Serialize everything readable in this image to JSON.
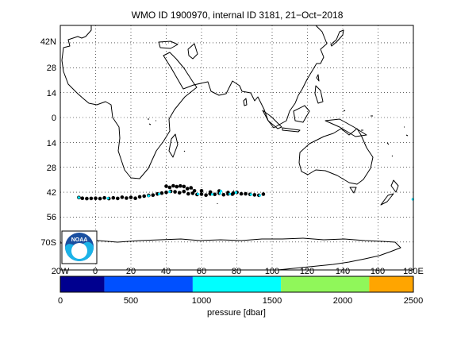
{
  "title": "WMO ID 1900970, internal ID 3181, 21−Oct−2018",
  "map": {
    "lat_ticks": [
      "42N",
      "28",
      "14",
      "0",
      "14",
      "28",
      "42",
      "56",
      "70S"
    ],
    "lon_ticks": [
      "20W",
      "0",
      "20",
      "40",
      "60",
      "80",
      "100",
      "120",
      "140",
      "160",
      "180E"
    ],
    "lon_range": [
      -20,
      180
    ],
    "lat_range": [
      -80,
      50
    ],
    "grid": true,
    "logo": "noaa-logo",
    "logo_text": "NOAA",
    "land_color": "#ffffff",
    "coastline_color": "#000000",
    "track": {
      "marker_color": "#000000",
      "highlight_color": "#00e5ff",
      "points": [
        [
          -9.5,
          -45.0
        ],
        [
          -7.5,
          -45.4
        ],
        [
          -5.0,
          -45.6
        ],
        [
          -2.5,
          -45.5
        ],
        [
          0.0,
          -45.4
        ],
        [
          2.5,
          -45.6
        ],
        [
          5.0,
          -45.2
        ],
        [
          7.5,
          -45.6
        ],
        [
          10.0,
          -45.2
        ],
        [
          12.5,
          -45.5
        ],
        [
          15.0,
          -44.8
        ],
        [
          17.5,
          -45.3
        ],
        [
          20.0,
          -44.9
        ],
        [
          22.5,
          -45.4
        ],
        [
          25.0,
          -44.6
        ],
        [
          27.5,
          -44.2
        ],
        [
          30.0,
          -43.8
        ],
        [
          32.5,
          -43.6
        ],
        [
          35.0,
          -43.0
        ],
        [
          37.5,
          -42.5
        ],
        [
          40.0,
          -42.1
        ],
        [
          42.5,
          -41.5
        ],
        [
          45.0,
          -41.8
        ],
        [
          47.5,
          -42.3
        ],
        [
          50.0,
          -41.6
        ],
        [
          52.5,
          -42.9
        ],
        [
          55.0,
          -42.6
        ],
        [
          57.5,
          -43.3
        ],
        [
          60.0,
          -43.1
        ],
        [
          62.5,
          -43.6
        ],
        [
          65.0,
          -43.0
        ],
        [
          67.5,
          -43.2
        ],
        [
          70.0,
          -42.6
        ],
        [
          72.5,
          -43.4
        ],
        [
          75.0,
          -43.0
        ],
        [
          77.5,
          -43.1
        ],
        [
          80.0,
          -42.1
        ],
        [
          82.5,
          -42.9
        ],
        [
          85.0,
          -42.9
        ],
        [
          87.5,
          -43.2
        ],
        [
          90.0,
          -43.5
        ],
        [
          92.5,
          -43.7
        ],
        [
          95.0,
          -43.1
        ],
        [
          40.0,
          -38.6
        ],
        [
          42.0,
          -39.3
        ],
        [
          44.0,
          -38.4
        ],
        [
          46.0,
          -38.9
        ],
        [
          48.0,
          -38.5
        ],
        [
          50.0,
          -38.8
        ],
        [
          52.0,
          -40.0
        ],
        [
          54.0,
          -39.5
        ],
        [
          56.0,
          -41.2
        ],
        [
          60.0,
          -41.2
        ],
        [
          65.0,
          -41.9
        ],
        [
          70.0,
          -41.3
        ],
        [
          75.0,
          -42.2
        ],
        [
          78.0,
          -42.5
        ]
      ],
      "highlight_points": [
        [
          -9.5,
          -45.0
        ],
        [
          7.0,
          -45.4
        ],
        [
          30.0,
          -44.0
        ],
        [
          36.0,
          -43.0
        ],
        [
          42.0,
          -41.7
        ],
        [
          58.0,
          -43.0
        ],
        [
          66.0,
          -43.2
        ],
        [
          70.5,
          -42.6
        ],
        [
          71.0,
          -41.4
        ],
        [
          76.0,
          -43.0
        ],
        [
          79.5,
          -42.2
        ],
        [
          88.0,
          -43.3
        ],
        [
          93.0,
          -43.8
        ],
        [
          179.7,
          -46.0
        ]
      ]
    }
  },
  "colorbar": {
    "label": "pressure [dbar]",
    "ticks": [
      "0",
      "500",
      "1000",
      "1500",
      "2000",
      "2500"
    ],
    "range": [
      0,
      2500
    ],
    "bins": [
      {
        "from": 0,
        "to": 312.5,
        "color": "#00008f"
      },
      {
        "from": 312.5,
        "to": 937.5,
        "color": "#0050ff"
      },
      {
        "from": 937.5,
        "to": 1562.5,
        "color": "#00ffff"
      },
      {
        "from": 1562.5,
        "to": 2187.5,
        "color": "#90f75a"
      },
      {
        "from": 2187.5,
        "to": 2500,
        "color": "#ffa500"
      }
    ]
  }
}
